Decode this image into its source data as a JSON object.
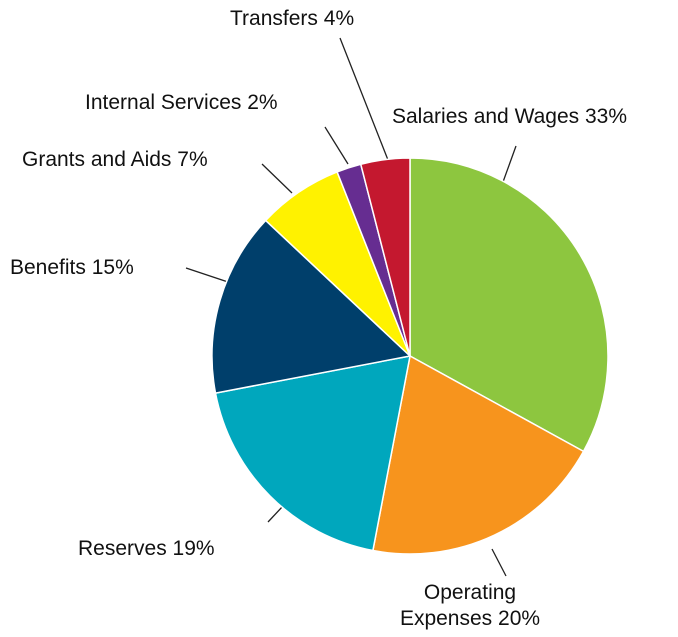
{
  "chart_data": {
    "type": "pie",
    "categories": [
      "Salaries and Wages",
      "Operating Expenses",
      "Reserves",
      "Benefits",
      "Grants and Aids",
      "Internal Services",
      "Transfers"
    ],
    "values": [
      33,
      20,
      19,
      15,
      7,
      2,
      4
    ],
    "value_labels": [
      "33%",
      "20%",
      "19%",
      "15%",
      "7%",
      "2%",
      "4%"
    ],
    "colors": [
      "#8dc63f",
      "#f7941d",
      "#00a7bd",
      "#003f6b",
      "#fff200",
      "#662d91",
      "#c4182f"
    ]
  }
}
